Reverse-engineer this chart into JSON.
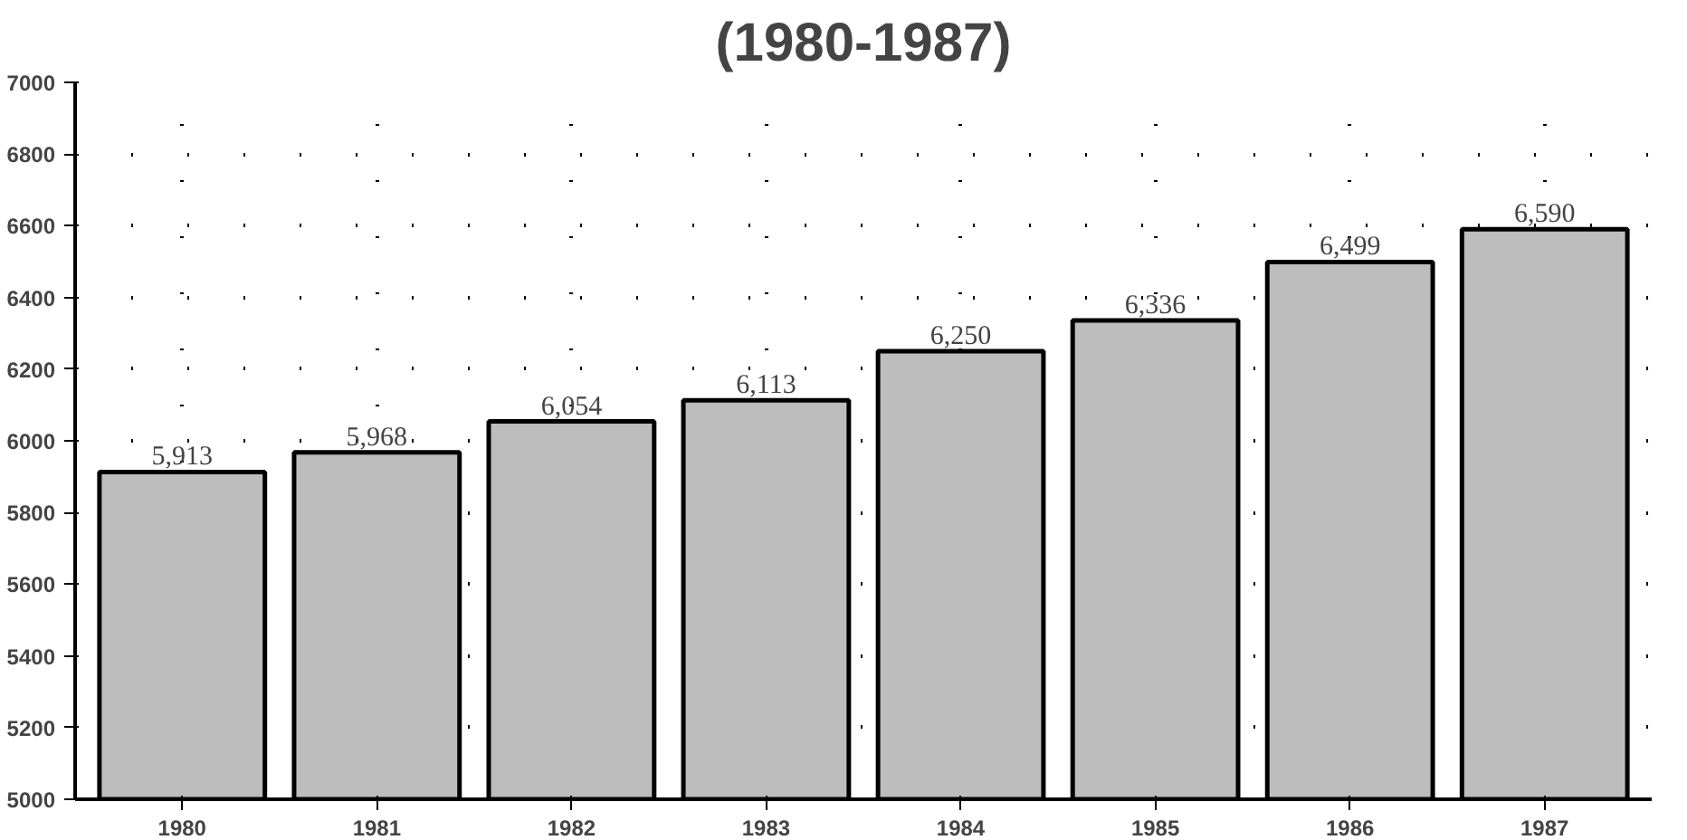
{
  "chart_data": {
    "type": "bar",
    "title": "(1980-1987)",
    "categories": [
      "1980",
      "1981",
      "1982",
      "1983",
      "1984",
      "1985",
      "1986",
      "1987"
    ],
    "values": [
      5913,
      5968,
      6054,
      6113,
      6250,
      6336,
      6499,
      6590
    ],
    "value_labels": [
      "5,913",
      "5,968",
      "6,054",
      "6,113",
      "6,250",
      "6,336",
      "6,499",
      "6,590"
    ],
    "color": "#bdbdbd",
    "ylim": [
      5000,
      7000
    ],
    "yticks": [
      5000,
      5200,
      5400,
      5600,
      5800,
      6000,
      6200,
      6400,
      6600,
      6800,
      7000
    ],
    "grid": true
  }
}
